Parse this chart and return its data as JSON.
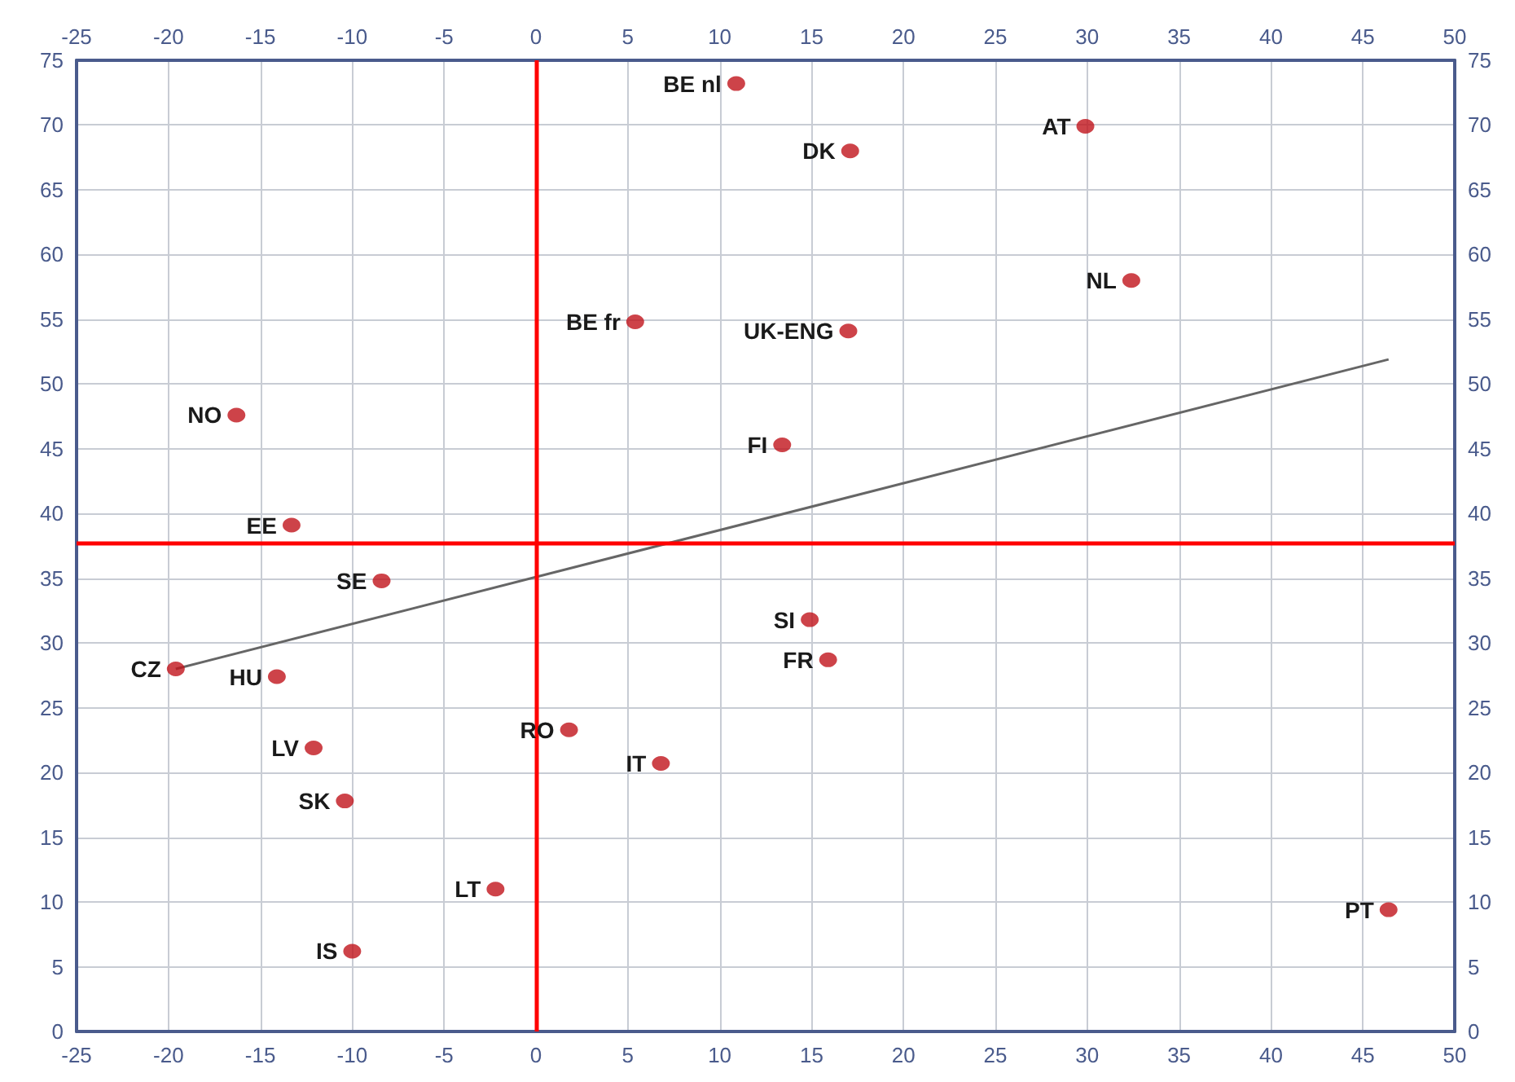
{
  "chart_data": {
    "type": "scatter",
    "marker": "circle",
    "grid": true,
    "xlim": [
      -25,
      50
    ],
    "xticks": [
      -25,
      -20,
      -15,
      -10,
      -5,
      0,
      5,
      10,
      15,
      20,
      25,
      30,
      35,
      40,
      45,
      50
    ],
    "x2lim": [
      -25,
      50
    ],
    "x2ticks": [
      -25,
      -20,
      -15,
      -10,
      -5,
      0,
      5,
      10,
      15,
      20,
      25,
      30,
      35,
      40,
      45,
      50
    ],
    "ylim": [
      0,
      75
    ],
    "yticks": [
      0,
      5,
      10,
      15,
      20,
      25,
      30,
      35,
      40,
      45,
      50,
      55,
      60,
      65,
      70,
      75
    ],
    "y2lim": [
      0,
      75
    ],
    "y2ticks": [
      0,
      5,
      10,
      15,
      20,
      25,
      30,
      35,
      40,
      45,
      50,
      55,
      60,
      65,
      70,
      75
    ],
    "series": [
      {
        "color": "#c0141c",
        "x": [
          10.9,
          29.9,
          17.1,
          32.4,
          17.0,
          13.4,
          5.4,
          -16.3,
          -13.3,
          -8.4,
          -19.6,
          -14.1,
          -12.1,
          -10.4,
          -2.2,
          -10.0,
          1.8,
          6.8,
          14.9,
          15.9,
          46.4
        ],
        "values": [
          73.2,
          69.9,
          68.0,
          58.0,
          54.1,
          45.3,
          54.8,
          47.6,
          39.1,
          34.8,
          28.0,
          27.4,
          21.9,
          17.8,
          11.0,
          6.2,
          23.3,
          20.7,
          31.8,
          28.7,
          9.4
        ]
      },
      {
        "type": "line",
        "color": "#666666",
        "line_style": "solid",
        "marker": "none",
        "x": [
          -19.6,
          46.4
        ],
        "values": [
          28.0,
          51.9
        ]
      }
    ],
    "ref_lines": [
      {
        "axis": "x",
        "value": 0,
        "color": "#ff0000"
      },
      {
        "axis": "y",
        "value": 37.7,
        "color": "#ff0000"
      }
    ],
    "annotations": [
      {
        "text": "BE nl",
        "x": 10.9,
        "y": 73.2
      },
      {
        "text": "AT",
        "x": 29.9,
        "y": 69.9
      },
      {
        "text": "DK",
        "x": 17.1,
        "y": 68.0
      },
      {
        "text": "NL",
        "x": 32.4,
        "y": 58.0
      },
      {
        "text": "UK-ENG",
        "x": 17.0,
        "y": 54.1
      },
      {
        "text": "FI",
        "x": 13.4,
        "y": 45.3
      },
      {
        "text": "BE fr",
        "x": 5.4,
        "y": 54.8
      },
      {
        "text": "NO",
        "x": -16.3,
        "y": 47.6
      },
      {
        "text": "EE",
        "x": -13.3,
        "y": 39.1
      },
      {
        "text": "SE",
        "x": -8.4,
        "y": 34.8
      },
      {
        "text": "CZ",
        "x": -19.6,
        "y": 28.0
      },
      {
        "text": "HU",
        "x": -14.1,
        "y": 27.4
      },
      {
        "text": "LV",
        "x": -12.1,
        "y": 21.9
      },
      {
        "text": "SK",
        "x": -10.4,
        "y": 17.8
      },
      {
        "text": "LT",
        "x": -2.2,
        "y": 11.0
      },
      {
        "text": "IS",
        "x": -10.0,
        "y": 6.2
      },
      {
        "text": "RO",
        "x": 1.8,
        "y": 23.3
      },
      {
        "text": "IT",
        "x": 6.8,
        "y": 20.7
      },
      {
        "text": "SI",
        "x": 14.9,
        "y": 31.8
      },
      {
        "text": "FR",
        "x": 15.9,
        "y": 28.7
      },
      {
        "text": "PT",
        "x": 46.4,
        "y": 9.4
      }
    ]
  }
}
